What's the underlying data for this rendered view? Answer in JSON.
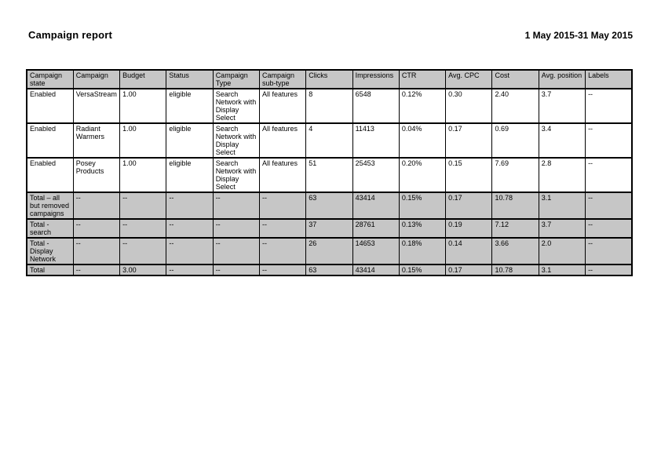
{
  "page": {
    "title": "Campaign report",
    "date_range": "1 May 2015-31 May 2015"
  },
  "table": {
    "columns": [
      "Campaign state",
      "Campaign",
      "Budget",
      "Status",
      "Campaign Type",
      "Campaign sub-type",
      "Clicks",
      "Impressions",
      "CTR",
      "Avg. CPC",
      "Cost",
      "Avg. position",
      "Labels"
    ],
    "rows": [
      [
        "Enabled",
        "VersaStream",
        "1.00",
        "eligible",
        "Search Network with Display Select",
        "All features",
        "8",
        "6548",
        "0.12%",
        "0.30",
        "2.40",
        "3.7",
        "--"
      ],
      [
        "Enabled",
        "Radiant Warmers",
        "1.00",
        "eligible",
        "Search Network with Display Select",
        "All features",
        "4",
        "11413",
        "0.04%",
        "0.17",
        "0.69",
        "3.4",
        "--"
      ],
      [
        "Enabled",
        "Posey Products",
        "1.00",
        "eligible",
        "Search Network with Display Select",
        "All features",
        "51",
        "25453",
        "0.20%",
        "0.15",
        "7.69",
        "2.8",
        "--"
      ]
    ],
    "total_rows": [
      [
        "Total – all but removed campaigns",
        "--",
        "--",
        "--",
        "--",
        "--",
        "63",
        "43414",
        "0.15%",
        "0.17",
        "10.78",
        "3.1",
        "--"
      ],
      [
        "Total - search",
        "--",
        "--",
        "--",
        "--",
        "--",
        "37",
        "28761",
        "0.13%",
        "0.19",
        "7.12",
        "3.7",
        "--"
      ],
      [
        "Total - Display Network",
        "--",
        "--",
        "--",
        "--",
        "--",
        "26",
        "14653",
        "0.18%",
        "0.14",
        "3.66",
        "2.0",
        "--"
      ],
      [
        "Total",
        "--",
        "3.00",
        "--",
        "--",
        "--",
        "63",
        "43414",
        "0.15%",
        "0.17",
        "10.78",
        "3.1",
        "--"
      ]
    ]
  },
  "colors": {
    "header_bg": "#c6c6c6",
    "total_bg": "#c6c6c6",
    "border": "#000000",
    "page_bg": "#ffffff"
  }
}
